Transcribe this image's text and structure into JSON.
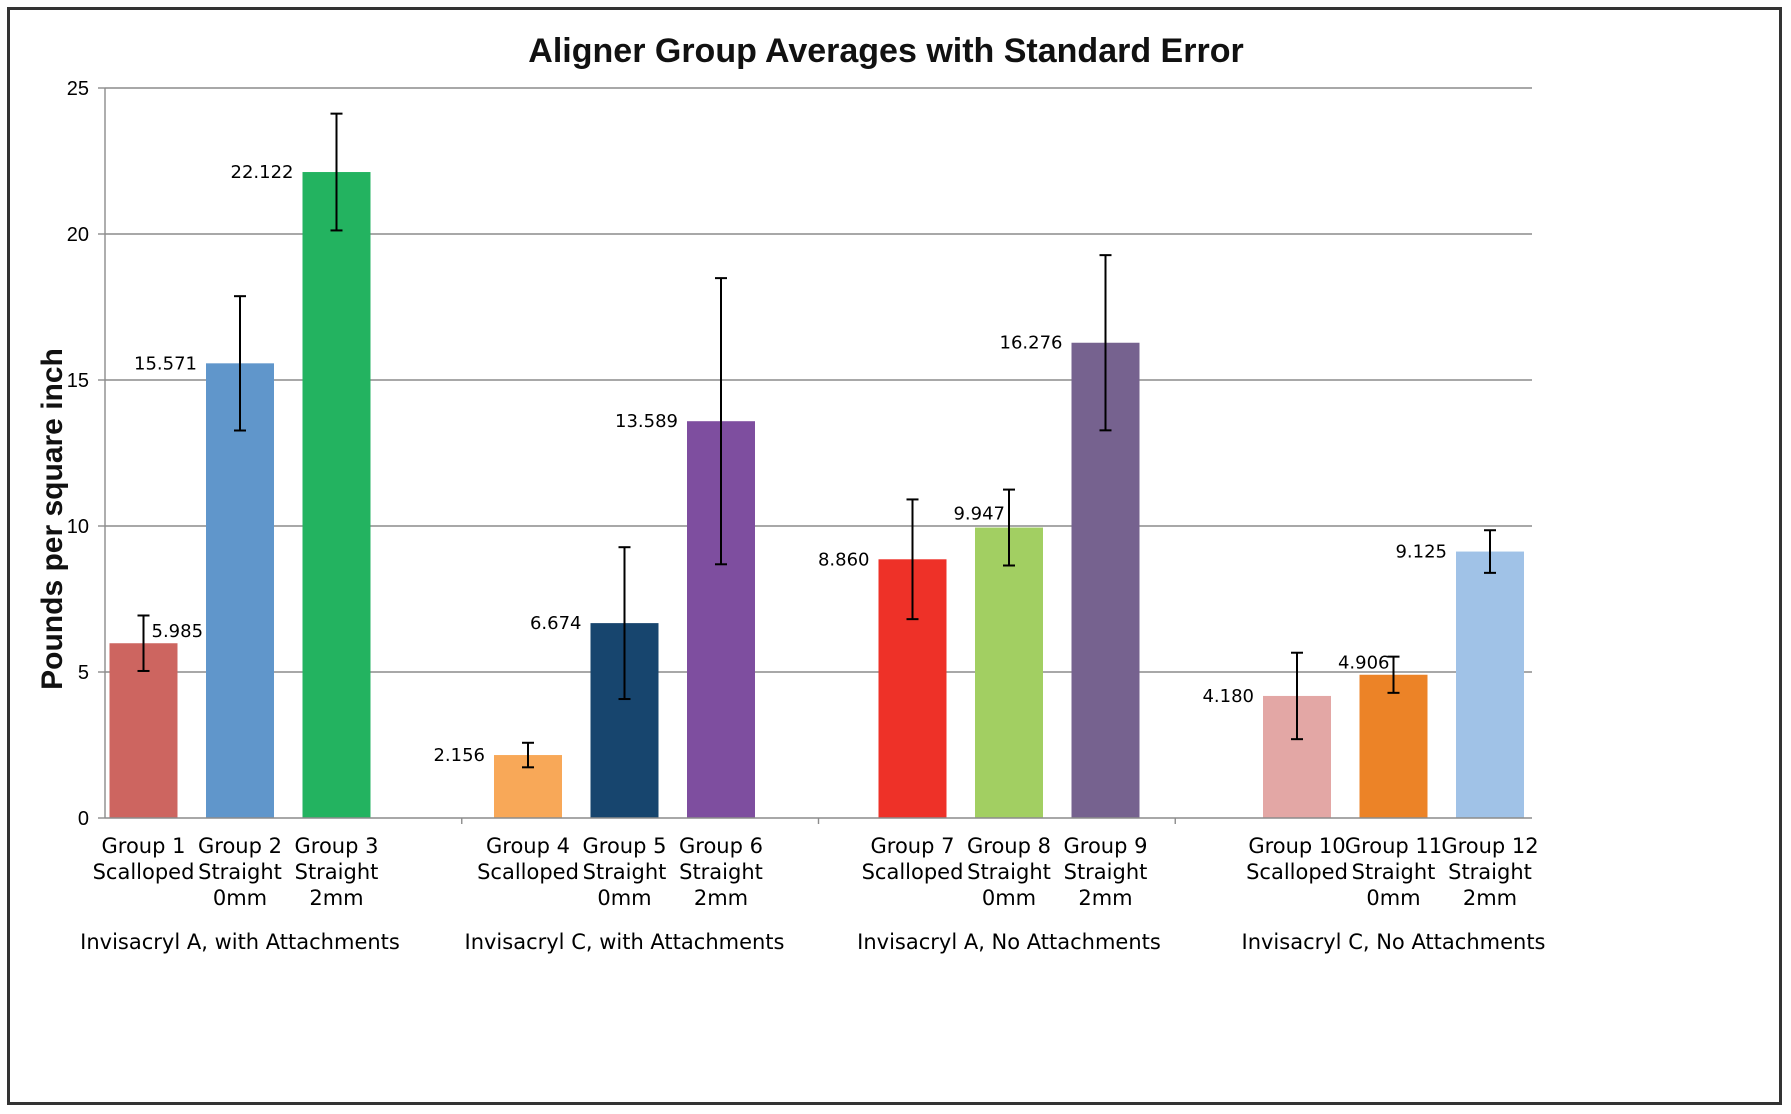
{
  "chart_data": {
    "type": "bar",
    "title": "Aligner Group Averages with Standard Error",
    "ylabel": "Pounds per square inch",
    "xlabel": "",
    "ylim": [
      0,
      25
    ],
    "yticks": [
      0,
      5,
      10,
      15,
      20,
      25
    ],
    "grid": "horizontal",
    "legend": "none",
    "error_bars": true,
    "bars": [
      {
        "name": "Group 1",
        "lines": [
          "Group 1",
          "Scalloped"
        ],
        "value": 5.985,
        "label": "5.985",
        "error": 0.95,
        "color": "#cd6560"
      },
      {
        "name": "Group 2",
        "lines": [
          "Group 2",
          "Straight",
          "0mm"
        ],
        "value": 15.571,
        "label": "15.571",
        "error": 2.3,
        "color": "#6096cb"
      },
      {
        "name": "Group 3",
        "lines": [
          "Group 3",
          "Straight",
          "2mm"
        ],
        "value": 22.122,
        "label": "22.122",
        "error": 2.0,
        "color": "#23b360"
      },
      {
        "name": "Group 4",
        "lines": [
          "Group 4",
          "Scalloped"
        ],
        "value": 2.156,
        "label": "2.156",
        "error": 0.42,
        "color": "#f8a858"
      },
      {
        "name": "Group 5",
        "lines": [
          "Group 5",
          "Straight",
          "0mm"
        ],
        "value": 6.674,
        "label": "6.674",
        "error": 2.6,
        "color": "#17456e"
      },
      {
        "name": "Group 6",
        "lines": [
          "Group 6",
          "Straight",
          "2mm"
        ],
        "value": 13.589,
        "label": "13.589",
        "error": 4.9,
        "color": "#7e4e9f"
      },
      {
        "name": "Group 7",
        "lines": [
          "Group 7",
          "Scalloped"
        ],
        "value": 8.86,
        "label": "8.860",
        "error": 2.05,
        "color": "#ee3128"
      },
      {
        "name": "Group 8",
        "lines": [
          "Group 8",
          "Straight",
          "0mm"
        ],
        "value": 9.947,
        "label": "9.947",
        "error": 1.3,
        "color": "#a2cf62"
      },
      {
        "name": "Group 9",
        "lines": [
          "Group 9",
          "Straight",
          "2mm"
        ],
        "value": 16.276,
        "label": "16.276",
        "error": 3.0,
        "color": "#76628f"
      },
      {
        "name": "Group 10",
        "lines": [
          "Group 10",
          "Scalloped"
        ],
        "value": 4.18,
        "label": "4.180",
        "error": 1.48,
        "color": "#e3a7a5"
      },
      {
        "name": "Group 11",
        "lines": [
          "Group 11",
          "Straight",
          "0mm"
        ],
        "value": 4.906,
        "label": "4.906",
        "error": 0.62,
        "color": "#ec8327"
      },
      {
        "name": "Group 12",
        "lines": [
          "Group 12",
          "Straight",
          "2mm"
        ],
        "value": 9.125,
        "label": "9.125",
        "error": 0.73,
        "color": "#a0c2e7"
      }
    ],
    "groups": [
      {
        "label": "Invisacryl A, with Attachments",
        "bars": [
          0,
          1,
          2
        ]
      },
      {
        "label": "Invisacryl C, with Attachments",
        "bars": [
          3,
          4,
          5
        ]
      },
      {
        "label": "Invisacryl A, No Attachments",
        "bars": [
          6,
          7,
          8
        ]
      },
      {
        "label": "Invisacryl C, No Attachments",
        "bars": [
          9,
          10,
          11
        ]
      }
    ]
  }
}
